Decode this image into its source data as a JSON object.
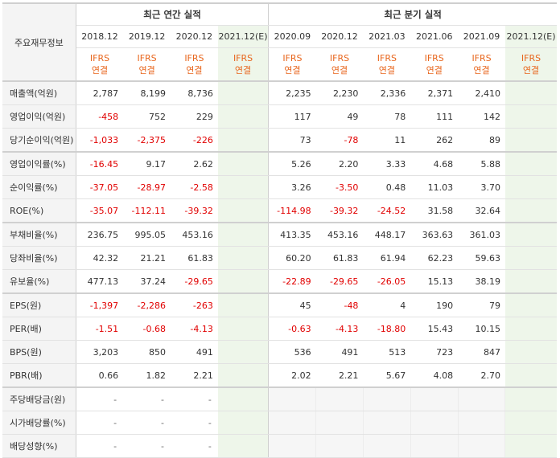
{
  "header": {
    "corner_label": "주요재무정보",
    "annual_title": "최근 연간 실적",
    "quarter_title": "최근 분기 실적",
    "annual_periods": [
      "2018.12",
      "2019.12",
      "2020.12",
      "2021.12(E)"
    ],
    "quarter_periods": [
      "2020.09",
      "2020.12",
      "2021.03",
      "2021.06",
      "2021.09",
      "2021.12(E)"
    ],
    "ifrs_line1": "IFRS",
    "ifrs_line2": "연결"
  },
  "rows": [
    {
      "label": "매출액(억원)",
      "annual": [
        "2,787",
        "8,199",
        "8,736",
        ""
      ],
      "quarter": [
        "2,235",
        "2,230",
        "2,336",
        "2,371",
        "2,410",
        ""
      ]
    },
    {
      "label": "영업이익(억원)",
      "annual": [
        "-458",
        "752",
        "229",
        ""
      ],
      "quarter": [
        "117",
        "49",
        "78",
        "111",
        "142",
        ""
      ]
    },
    {
      "label": "당기순이익(억원)",
      "annual": [
        "-1,033",
        "-2,375",
        "-226",
        ""
      ],
      "quarter": [
        "73",
        "-78",
        "11",
        "262",
        "89",
        ""
      ]
    },
    {
      "label": "영업이익률(%)",
      "annual": [
        "-16.45",
        "9.17",
        "2.62",
        ""
      ],
      "quarter": [
        "5.26",
        "2.20",
        "3.33",
        "4.68",
        "5.88",
        ""
      ]
    },
    {
      "label": "순이익률(%)",
      "annual": [
        "-37.05",
        "-28.97",
        "-2.58",
        ""
      ],
      "quarter": [
        "3.26",
        "-3.50",
        "0.48",
        "11.03",
        "3.70",
        ""
      ]
    },
    {
      "label": "ROE(%)",
      "annual": [
        "-35.07",
        "-112.11",
        "-39.32",
        ""
      ],
      "quarter": [
        "-114.98",
        "-39.32",
        "-24.52",
        "31.58",
        "32.64",
        ""
      ]
    },
    {
      "label": "부채비율(%)",
      "annual": [
        "236.75",
        "995.05",
        "453.16",
        ""
      ],
      "quarter": [
        "413.35",
        "453.16",
        "448.17",
        "363.63",
        "361.03",
        ""
      ]
    },
    {
      "label": "당좌비율(%)",
      "annual": [
        "42.32",
        "21.21",
        "61.83",
        ""
      ],
      "quarter": [
        "60.20",
        "61.83",
        "61.94",
        "62.23",
        "59.63",
        ""
      ]
    },
    {
      "label": "유보율(%)",
      "annual": [
        "477.13",
        "37.24",
        "-29.65",
        ""
      ],
      "quarter": [
        "-22.89",
        "-29.65",
        "-26.05",
        "15.13",
        "38.19",
        ""
      ]
    },
    {
      "label": "EPS(원)",
      "annual": [
        "-1,397",
        "-2,286",
        "-263",
        ""
      ],
      "quarter": [
        "45",
        "-48",
        "4",
        "190",
        "79",
        ""
      ]
    },
    {
      "label": "PER(배)",
      "annual": [
        "-1.51",
        "-0.68",
        "-4.13",
        ""
      ],
      "quarter": [
        "-0.63",
        "-4.13",
        "-18.80",
        "15.43",
        "10.15",
        ""
      ]
    },
    {
      "label": "BPS(원)",
      "annual": [
        "3,203",
        "850",
        "491",
        ""
      ],
      "quarter": [
        "536",
        "491",
        "513",
        "723",
        "847",
        ""
      ]
    },
    {
      "label": "PBR(배)",
      "annual": [
        "0.66",
        "1.82",
        "2.21",
        ""
      ],
      "quarter": [
        "2.02",
        "2.21",
        "5.67",
        "4.08",
        "2.70",
        ""
      ]
    },
    {
      "label": "주당배당금(원)",
      "annual": [
        "-",
        "-",
        "-",
        ""
      ],
      "quarter": [
        "",
        "",
        "",
        "",
        "",
        ""
      ]
    },
    {
      "label": "시가배당률(%)",
      "annual": [
        "-",
        "-",
        "-",
        ""
      ],
      "quarter": [
        "",
        "",
        "",
        "",
        "",
        ""
      ]
    },
    {
      "label": "배당성향(%)",
      "annual": [
        "-",
        "-",
        "-",
        ""
      ],
      "quarter": [
        "",
        "",
        "",
        "",
        "",
        ""
      ]
    }
  ],
  "colors": {
    "negative": "#e10000",
    "ifrs": "#e8661d",
    "estimate_bg": "#eef6ea",
    "label_bg": "#f4f4f4"
  }
}
